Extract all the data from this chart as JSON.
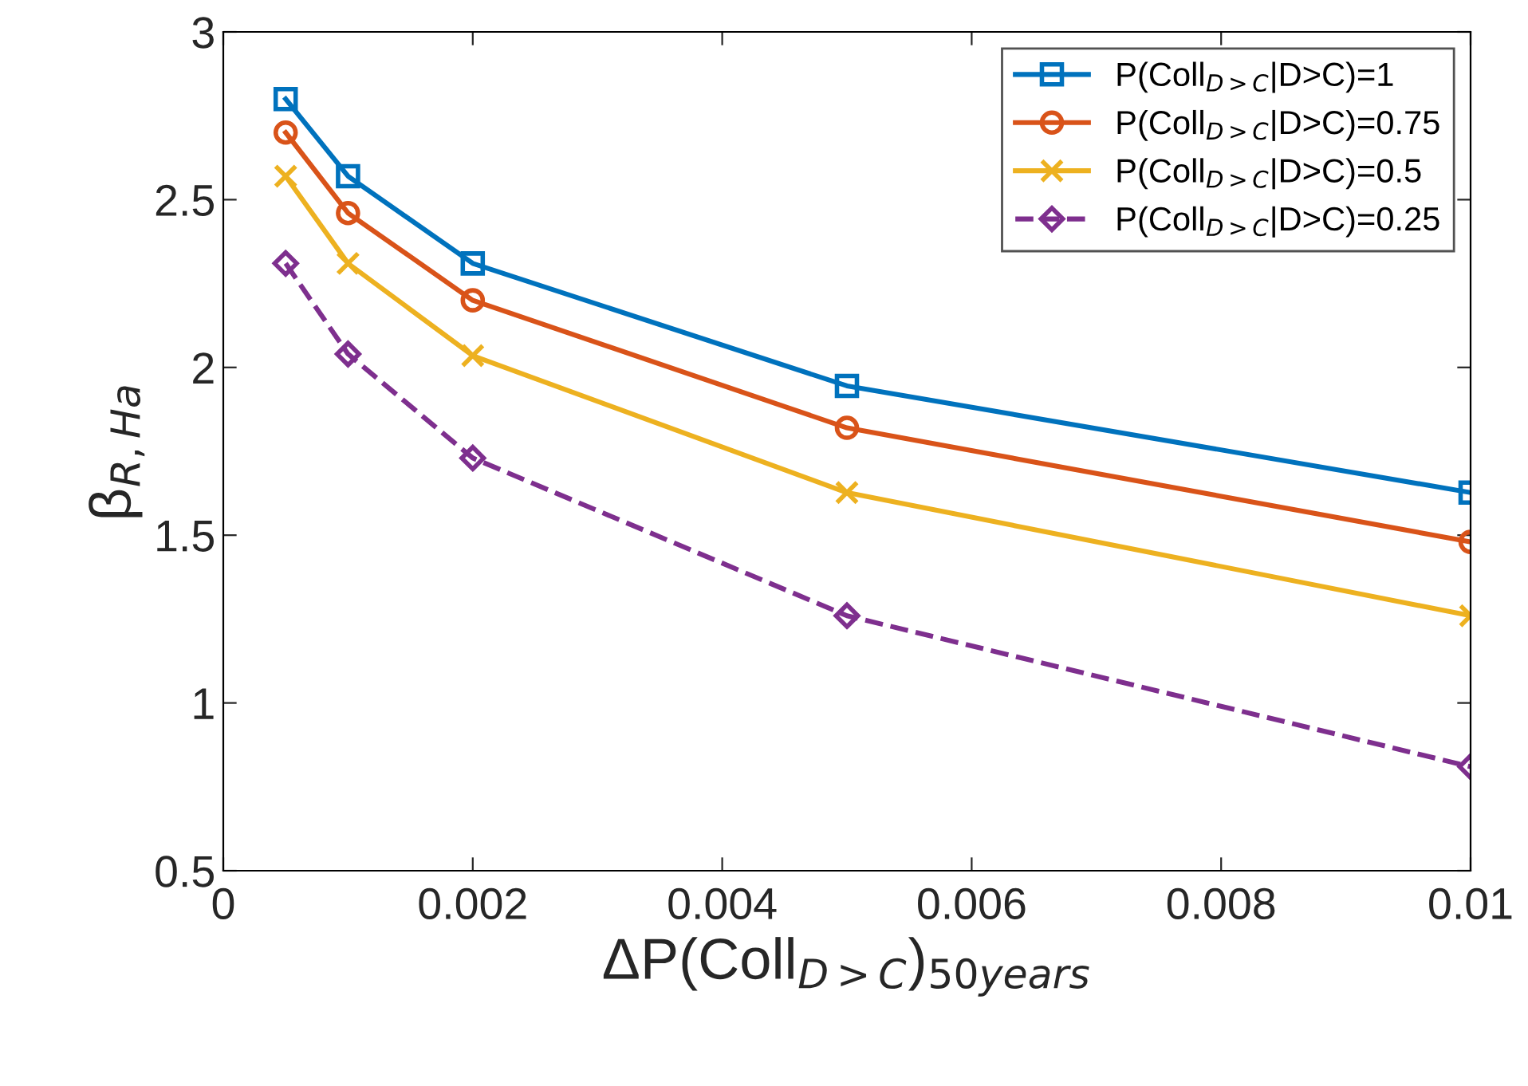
{
  "chart_data": {
    "type": "line",
    "xlabel": "ΔP(Coll$_{D>C}$)$_{50years}$",
    "ylabel": "β$_{R,Ha}$",
    "x": [
      0.0005,
      0.001,
      0.002,
      0.005,
      0.01
    ],
    "series": [
      {
        "name": "P(Coll$_{D>C}$|D>C)=1",
        "color": "#0072bd",
        "marker": "square",
        "line_style": "solid",
        "values": [
          2.8,
          2.57,
          2.31,
          1.945,
          1.627
        ]
      },
      {
        "name": "P(Coll$_{D>C}$|D>C)=0.75",
        "color": "#d95319",
        "marker": "circle",
        "line_style": "solid",
        "values": [
          2.7,
          2.46,
          2.2,
          1.82,
          1.48
        ]
      },
      {
        "name": "P(Coll$_{D>C}$|D>C)=0.5",
        "color": "#edb120",
        "marker": "cross",
        "line_style": "solid",
        "values": [
          2.57,
          2.31,
          2.035,
          1.627,
          1.26
        ]
      },
      {
        "name": "P(Coll$_{D>C}$|D>C)=0.25",
        "color": "#7e2f8e",
        "marker": "diamond",
        "line_style": "dashed",
        "values": [
          2.31,
          2.04,
          1.73,
          1.26,
          0.81
        ]
      }
    ],
    "xlim": [
      0,
      0.01
    ],
    "xticks": [
      0,
      0.002,
      0.004,
      0.006,
      0.008,
      0.01
    ],
    "ylim": [
      0.5,
      3
    ],
    "yticks": [
      0.5,
      1,
      1.5,
      2,
      2.5,
      3
    ],
    "grid": false,
    "legend": "top right"
  }
}
